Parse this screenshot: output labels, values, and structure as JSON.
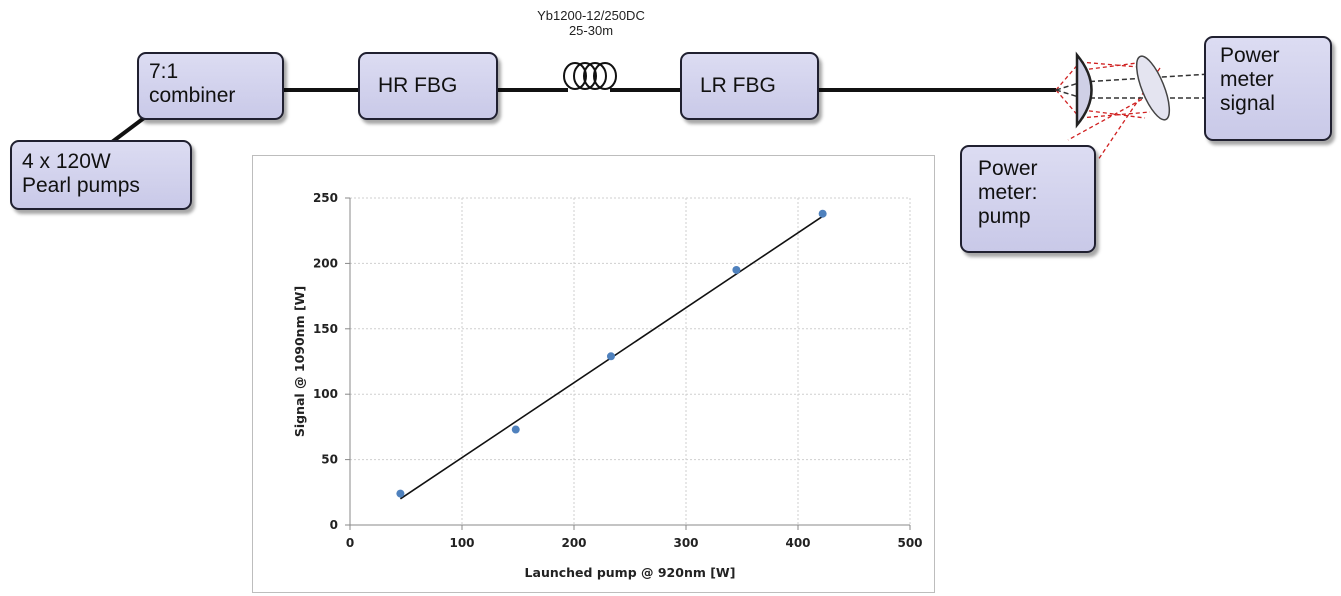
{
  "components": {
    "pumps": "4 x 120W\nPearl pumps",
    "combiner": "7:1\ncombiner",
    "hr_fbg": "HR FBG",
    "lr_fbg": "LR FBG",
    "pm_signal": "Power\nmeter\nsignal",
    "pm_pump": "Power\nmeter:\npump"
  },
  "fiber": {
    "type": "Yb1200-12/250DC",
    "length": "25-30m"
  },
  "colors": {
    "box_fill": "#d3d3ee",
    "box_border": "#202030",
    "point": "#4f81bd",
    "fit_line": "#111111",
    "pump_beam": "#d02020",
    "signal_beam": "#333333"
  },
  "chart_data": {
    "type": "scatter",
    "xlabel": "Launched pump @ 920nm [W]",
    "ylabel": "Signal @ 1090nm [W]",
    "xlim": [
      0,
      500
    ],
    "ylim": [
      0,
      250
    ],
    "xticks": [
      0,
      100,
      200,
      300,
      400,
      500
    ],
    "yticks": [
      0,
      50,
      100,
      150,
      200,
      250
    ],
    "grid": true,
    "points": [
      {
        "x": 45,
        "y": 24
      },
      {
        "x": 148,
        "y": 73
      },
      {
        "x": 233,
        "y": 129
      },
      {
        "x": 345,
        "y": 195
      },
      {
        "x": 422,
        "y": 238
      }
    ],
    "fit_line": {
      "x": [
        45,
        422
      ],
      "y": [
        20,
        236
      ]
    }
  }
}
